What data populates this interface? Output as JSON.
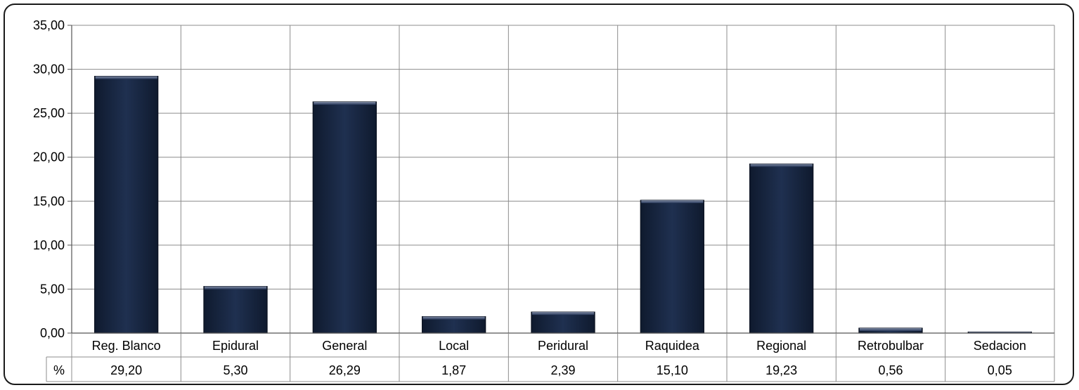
{
  "chart_data": {
    "type": "bar",
    "categories": [
      "Reg. Blanco",
      "Epidural",
      "General",
      "Local",
      "Peridural",
      "Raquidea",
      "Regional",
      "Retrobulbar",
      "Sedacion"
    ],
    "series": [
      {
        "name": "%",
        "values": [
          29.2,
          5.3,
          26.29,
          1.87,
          2.39,
          15.1,
          19.23,
          0.56,
          0.05
        ]
      }
    ],
    "value_labels": [
      "29,20",
      "5,30",
      "26,29",
      "1,87",
      "2,39",
      "15,10",
      "19,23",
      "0,56",
      "0,05"
    ],
    "y_tick_labels": [
      "0,00",
      "5,00",
      "10,00",
      "15,00",
      "20,00",
      "25,00",
      "30,00",
      "35,00"
    ],
    "y_ticks": [
      0,
      5,
      10,
      15,
      20,
      25,
      30,
      35
    ],
    "ylim": [
      0,
      35
    ],
    "grid": true,
    "data_table": true,
    "bar_color": "#1b2a47",
    "grid_color": "#8c8c8c"
  }
}
